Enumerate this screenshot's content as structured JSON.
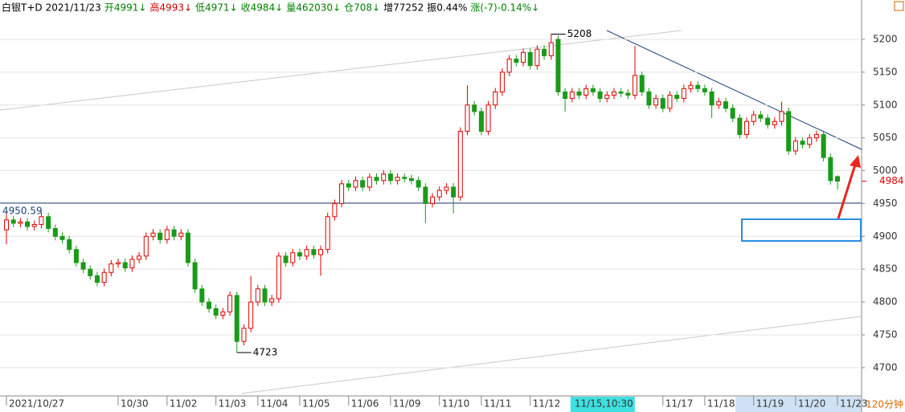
{
  "chart_data": {
    "type": "candlestick",
    "header": [
      {
        "text": "白银T+D",
        "color": "#000000"
      },
      {
        "text": "2021/11/23",
        "color": "#000000"
      },
      {
        "text": "开4991↓",
        "color": "#008000"
      },
      {
        "text": "高4993↓",
        "color": "#d00000"
      },
      {
        "text": "低4971↓",
        "color": "#008000"
      },
      {
        "text": "收4984↓",
        "color": "#008000"
      },
      {
        "text": "量462030↓",
        "color": "#008000"
      },
      {
        "text": "仓708↓",
        "color": "#008000"
      },
      {
        "text": "增77252",
        "color": "#000000"
      },
      {
        "text": "振0.44%",
        "color": "#000000"
      },
      {
        "text": "涨(-7)-0.14%↓",
        "color": "#008000"
      }
    ],
    "period": "120分钟",
    "up_color": "#e00000",
    "down_color": "#1a9a1a",
    "ylim": [
      4657,
      5233
    ],
    "yticks": [
      4700,
      4750,
      4800,
      4850,
      4900,
      4950,
      5000,
      5050,
      5100,
      5150,
      5200
    ],
    "grid": true,
    "last_price": 4984,
    "hline": {
      "value": 4950.59,
      "label": "4950.59"
    },
    "annotations": [
      {
        "index": 78,
        "value": 5208,
        "label": "5208"
      },
      {
        "index": 33,
        "value": 4723,
        "label": "4723"
      }
    ],
    "xticks": [
      {
        "value": 0,
        "label": "2021/10/27"
      },
      {
        "value": 16,
        "label": "10/30"
      },
      {
        "value": 23,
        "label": "11/02"
      },
      {
        "value": 30,
        "label": "11/03"
      },
      {
        "value": 36,
        "label": "11/04"
      },
      {
        "value": 42,
        "label": "11/05"
      },
      {
        "value": 49,
        "label": "11/06"
      },
      {
        "value": 55,
        "label": "11/09"
      },
      {
        "value": 62,
        "label": "11/10"
      },
      {
        "value": 68,
        "label": "11/11"
      },
      {
        "value": 75,
        "label": "11/12"
      },
      {
        "value": 81,
        "label": "11/15,10:30"
      },
      {
        "value": 94,
        "label": "11/17"
      },
      {
        "value": 100,
        "label": "11/18"
      },
      {
        "value": 107,
        "label": "11/19"
      },
      {
        "value": 113,
        "label": "11/20"
      },
      {
        "value": 119,
        "label": "11/23"
      }
    ],
    "open": [
      4910,
      4925,
      4920,
      4922,
      4915,
      4918,
      4930,
      4912,
      4900,
      4895,
      4880,
      4860,
      4850,
      4840,
      4830,
      4845,
      4858,
      4860,
      4852,
      4865,
      4870,
      4900,
      4905,
      4895,
      4910,
      4900,
      4905,
      4860,
      4820,
      4800,
      4790,
      4780,
      4785,
      4810,
      4740,
      4760,
      4800,
      4820,
      4800,
      4805,
      4870,
      4860,
      4875,
      4870,
      4880,
      4872,
      4880,
      4930,
      4950,
      4980,
      4975,
      4985,
      4975,
      4990,
      4985,
      4995,
      4985,
      4990,
      4988,
      4985,
      4975,
      4950,
      4960,
      4970,
      4975,
      4960,
      5060,
      5100,
      5090,
      5060,
      5100,
      5120,
      5150,
      5170,
      5165,
      5180,
      5160,
      5185,
      5175,
      5200,
      5120,
      5110,
      5120,
      5115,
      5125,
      5120,
      5110,
      5115,
      5120,
      5118,
      5115,
      5145,
      5120,
      5100,
      5110,
      5095,
      5115,
      5110,
      5125,
      5130,
      5125,
      5120,
      5100,
      5105,
      5095,
      5080,
      5055,
      5075,
      5085,
      5080,
      5070,
      5075,
      5090,
      5030,
      5045,
      5040,
      5050,
      5055,
      5020,
      4991
    ],
    "high": [
      4940,
      4931,
      4928,
      4928,
      4924,
      4936,
      4936,
      4918,
      4906,
      4901,
      4886,
      4866,
      4856,
      4846,
      4851,
      4864,
      4866,
      4866,
      4871,
      4876,
      4906,
      4911,
      4911,
      4916,
      4916,
      4911,
      4911,
      4866,
      4826,
      4806,
      4796,
      4791,
      4816,
      4816,
      4766,
      4840,
      4826,
      4826,
      4811,
      4876,
      4876,
      4881,
      4881,
      4886,
      4886,
      4886,
      4936,
      4956,
      4986,
      4986,
      4991,
      4991,
      4996,
      4996,
      5001,
      5001,
      4996,
      4996,
      4994,
      4991,
      4981,
      4966,
      4976,
      4981,
      4981,
      5066,
      5130,
      5106,
      5096,
      5106,
      5126,
      5156,
      5176,
      5176,
      5186,
      5186,
      5191,
      5191,
      5208,
      5206,
      5126,
      5126,
      5126,
      5131,
      5131,
      5126,
      5121,
      5126,
      5126,
      5124,
      5190,
      5151,
      5126,
      5116,
      5116,
      5121,
      5121,
      5131,
      5136,
      5136,
      5131,
      5126,
      5111,
      5111,
      5101,
      5086,
      5081,
      5091,
      5091,
      5086,
      5081,
      5105,
      5096,
      5051,
      5051,
      5056,
      5061,
      5061,
      5026,
      4993
    ],
    "low": [
      4888,
      4914,
      4914,
      4909,
      4909,
      4912,
      4906,
      4894,
      4889,
      4874,
      4854,
      4844,
      4834,
      4824,
      4824,
      4839,
      4852,
      4846,
      4846,
      4859,
      4864,
      4894,
      4889,
      4889,
      4894,
      4894,
      4854,
      4814,
      4794,
      4784,
      4774,
      4774,
      4779,
      4723,
      4734,
      4754,
      4794,
      4794,
      4794,
      4799,
      4854,
      4854,
      4864,
      4864,
      4866,
      4840,
      4874,
      4924,
      4944,
      4969,
      4969,
      4969,
      4969,
      4979,
      4979,
      4979,
      4979,
      4982,
      4979,
      4969,
      4920,
      4944,
      4954,
      4964,
      4935,
      4954,
      5054,
      5084,
      5054,
      5054,
      5094,
      5114,
      5144,
      5159,
      5159,
      5154,
      5154,
      5169,
      5169,
      5114,
      5090,
      5104,
      5109,
      5109,
      5114,
      5104,
      5104,
      5109,
      5112,
      5109,
      5109,
      5114,
      5094,
      5094,
      5089,
      5089,
      5104,
      5104,
      5119,
      5119,
      5114,
      5080,
      5094,
      5089,
      5074,
      5049,
      5049,
      5069,
      5074,
      5064,
      5064,
      5069,
      5024,
      5024,
      5034,
      5034,
      5044,
      5014,
      4979,
      4971
    ],
    "close": [
      4925,
      4920,
      4922,
      4915,
      4918,
      4930,
      4912,
      4900,
      4895,
      4880,
      4860,
      4850,
      4840,
      4830,
      4845,
      4858,
      4860,
      4852,
      4865,
      4870,
      4900,
      4905,
      4895,
      4910,
      4900,
      4905,
      4860,
      4820,
      4800,
      4790,
      4780,
      4785,
      4810,
      4740,
      4760,
      4800,
      4820,
      4800,
      4805,
      4870,
      4860,
      4875,
      4870,
      4880,
      4872,
      4880,
      4930,
      4950,
      4980,
      4975,
      4985,
      4975,
      4990,
      4985,
      4995,
      4985,
      4990,
      4988,
      4985,
      4975,
      4950,
      4960,
      4970,
      4975,
      4960,
      5060,
      5100,
      5090,
      5060,
      5100,
      5120,
      5150,
      5170,
      5165,
      5180,
      5160,
      5185,
      5175,
      5195,
      5120,
      5110,
      5120,
      5115,
      5125,
      5120,
      5110,
      5115,
      5120,
      5118,
      5115,
      5145,
      5120,
      5100,
      5110,
      5095,
      5115,
      5110,
      5125,
      5130,
      5125,
      5120,
      5100,
      5105,
      5095,
      5080,
      5055,
      5075,
      5085,
      5080,
      5070,
      5075,
      5090,
      5030,
      5045,
      5040,
      5050,
      5055,
      5020,
      4985,
      4984
    ]
  }
}
